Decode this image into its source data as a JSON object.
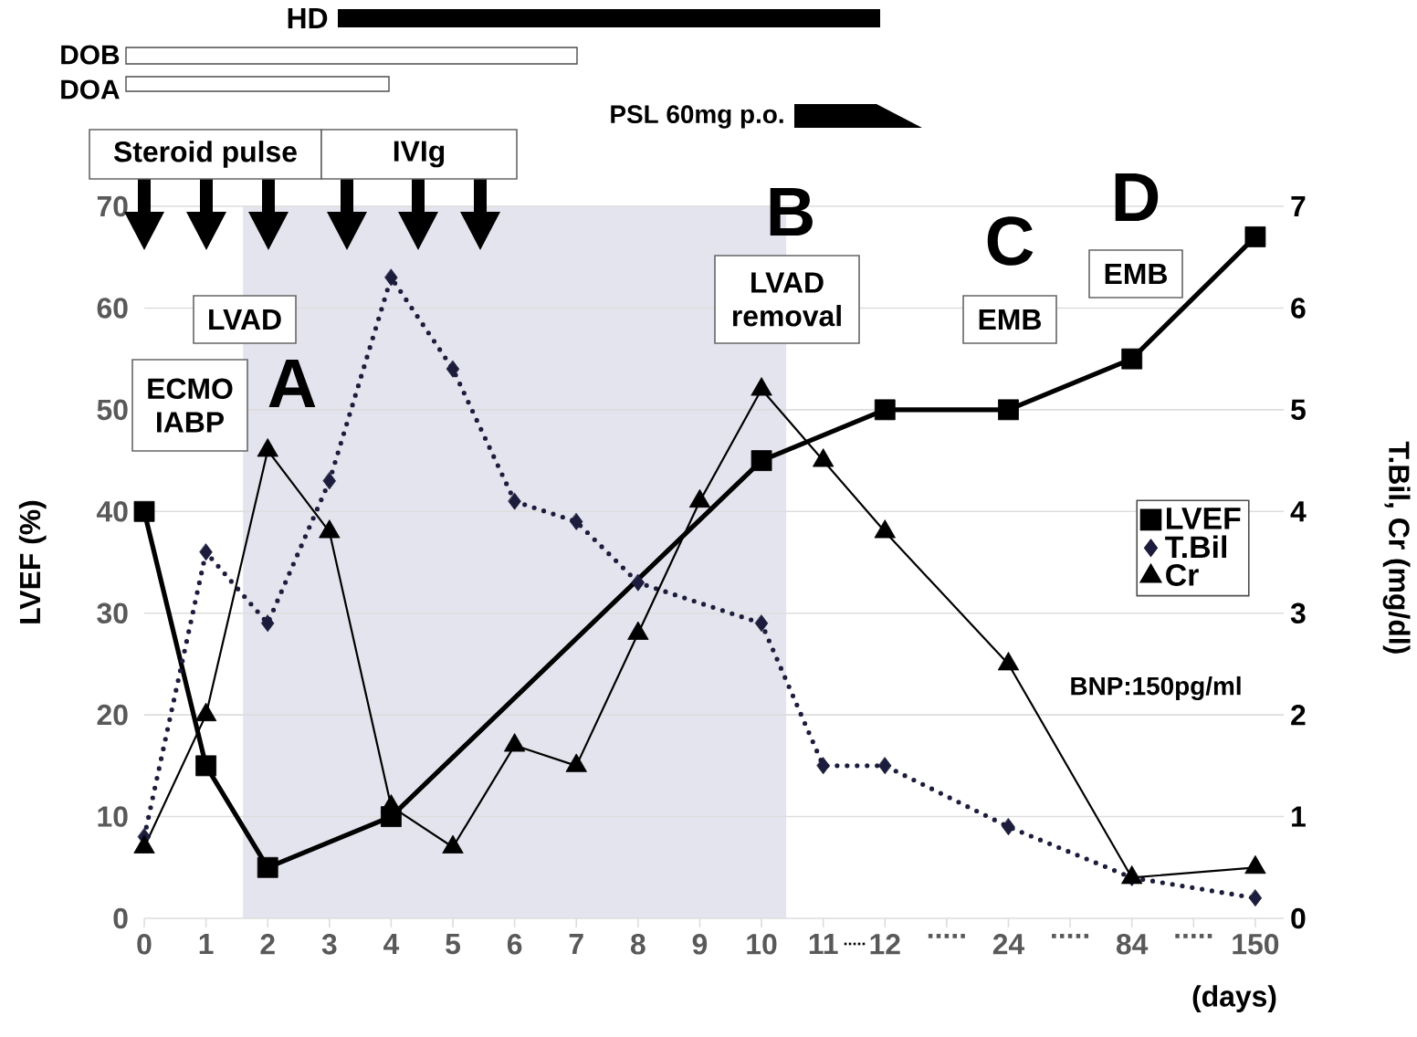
{
  "chart_data": {
    "type": "line",
    "categories": [
      "0",
      "1",
      "2",
      "3",
      "4",
      "5",
      "6",
      "7",
      "8",
      "9",
      "10",
      "11",
      "12",
      ".....",
      "24",
      ".....",
      "84",
      ".....",
      "150"
    ],
    "series": [
      {
        "name": "LVEF",
        "color": "#000000",
        "marker": "square",
        "line_style": "solid",
        "axis": "y",
        "values": [
          40,
          15,
          5,
          null,
          10,
          null,
          null,
          null,
          null,
          null,
          45,
          null,
          50,
          null,
          50,
          null,
          55,
          null,
          67
        ]
      },
      {
        "name": "T.Bil",
        "color": "#1c1c3c",
        "marker": "diamond",
        "line_style": "dotted",
        "axis": "y2",
        "values": [
          0.8,
          3.6,
          2.9,
          4.3,
          6.3,
          5.4,
          4.1,
          3.9,
          3.3,
          null,
          2.9,
          1.5,
          1.5,
          null,
          0.9,
          null,
          0.4,
          null,
          0.2
        ]
      },
      {
        "name": "Cr",
        "color": "#000000",
        "marker": "triangle",
        "line_style": "solid",
        "axis": "y2",
        "values": [
          0.7,
          2.0,
          4.6,
          3.8,
          1.1,
          0.7,
          1.7,
          1.5,
          2.8,
          4.1,
          5.2,
          4.5,
          3.8,
          null,
          2.5,
          null,
          0.4,
          null,
          0.5
        ]
      }
    ],
    "xlabel": "(days)",
    "ylabel": "LVEF (%)",
    "y2label": "T.Bil, Cr (mg/dl)",
    "ylim": [
      0,
      70
    ],
    "yticks": [
      0,
      10,
      20,
      30,
      40,
      50,
      60,
      70
    ],
    "y2lim": [
      0,
      7
    ],
    "y2ticks": [
      0,
      1,
      2,
      3,
      4,
      5,
      6,
      7
    ],
    "annotations": [
      "HD",
      "DOB",
      "DOA",
      "PSL 60mg p.o.",
      "Steroid pulse",
      "IVIg",
      "ECMO IABP",
      "LVAD",
      "A",
      "B",
      "LVAD removal",
      "C",
      "EMB",
      "D",
      "EMB",
      "BNP:150pg/ml",
      "....."
    ],
    "grid": "y",
    "legend": "right"
  }
}
